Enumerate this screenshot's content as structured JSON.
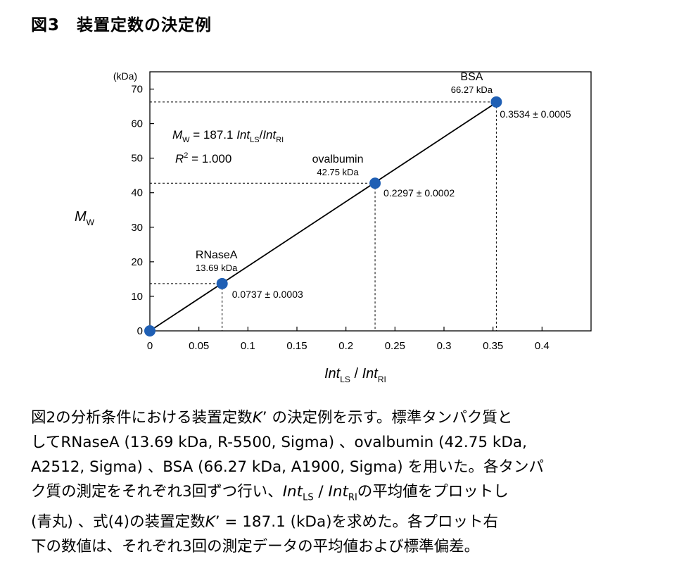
{
  "figure": {
    "title": "図3　装置定数の決定例"
  },
  "chart_data": {
    "type": "scatter",
    "xlabel": {
      "main": "Int",
      "sub": "LS",
      "sep": " / ",
      "main2": "Int",
      "sub2": "RI"
    },
    "ylabel": {
      "main": "M",
      "sub": "W"
    },
    "y_unit_label": "(kDa)",
    "xlim": [
      0,
      0.45
    ],
    "ylim": [
      0,
      75
    ],
    "xticks": [
      0,
      0.05,
      0.1,
      0.15,
      0.2,
      0.25,
      0.3,
      0.35,
      0.4
    ],
    "xtick_labels": [
      "0",
      "0.05",
      "0.1",
      "0.15",
      "0.2",
      "0.25",
      "0.3",
      "0.35",
      "0.4"
    ],
    "yticks": [
      0,
      10,
      20,
      30,
      40,
      50,
      60,
      70
    ],
    "ytick_labels": [
      "0",
      "10",
      "20",
      "30",
      "40",
      "50",
      "60",
      "70"
    ],
    "grid": false,
    "point_color": "#1f5fb4",
    "points": [
      {
        "x": 0,
        "y": 0
      },
      {
        "x": 0.0737,
        "y": 13.69,
        "name": "RNaseA",
        "mw_label": "13.69 kDa",
        "value_label": "0.0737 ± 0.0003"
      },
      {
        "x": 0.2297,
        "y": 42.75,
        "name": "ovalbumin",
        "mw_label": "42.75 kDa",
        "value_label": "0.2297 ± 0.0002"
      },
      {
        "x": 0.3534,
        "y": 66.27,
        "name": "BSA",
        "mw_label": "66.27 kDa",
        "value_label": "0.3534 ± 0.0005"
      }
    ],
    "fit_line": {
      "slope": 187.1,
      "x_range": [
        0,
        0.3534
      ]
    },
    "equation": {
      "m": "M",
      "m_sub": "W",
      "eq": " = 187.1 ",
      "int1": "Int",
      "int1_sub": "LS",
      "slash": "/",
      "int2": "Int",
      "int2_sub": "RI"
    },
    "r2": {
      "r": "R",
      "sup": "2",
      "rest": " = 1.000"
    }
  },
  "caption": {
    "lines": [
      [
        {
          "t": "図2の分析条件における装置定数"
        },
        {
          "t": "K",
          "s": "it"
        },
        {
          "t": "’ の決定例を示す。標準タンパク質と"
        }
      ],
      [
        {
          "t": "してRNaseA (13.69  kDa,  R-5500,  Sigma) 、ovalbumin (42.75  kDa,"
        }
      ],
      [
        {
          "t": "A2512, Sigma) 、BSA (66.27 kDa, A1900, Sigma) を用いた。各タンパ"
        }
      ],
      [
        {
          "t": "ク質の測定をそれぞれ3回ずつ行い、"
        },
        {
          "t": "Int",
          "s": "it"
        },
        {
          "t": "LS",
          "s": "sub"
        },
        {
          "t": " / "
        },
        {
          "t": "Int",
          "s": "it"
        },
        {
          "t": "RI",
          "s": "sub"
        },
        {
          "t": "の平均値をプロットし"
        }
      ],
      [
        {
          "t": " (青丸) 、式(4)の装置定数"
        },
        {
          "t": "K",
          "s": "it"
        },
        {
          "t": "’ = 187.1 (kDa)を求めた。各プロット右"
        }
      ],
      [
        {
          "t": "下の数値は、それぞれ3回の測定データの平均値および標準偏差。"
        }
      ]
    ]
  }
}
